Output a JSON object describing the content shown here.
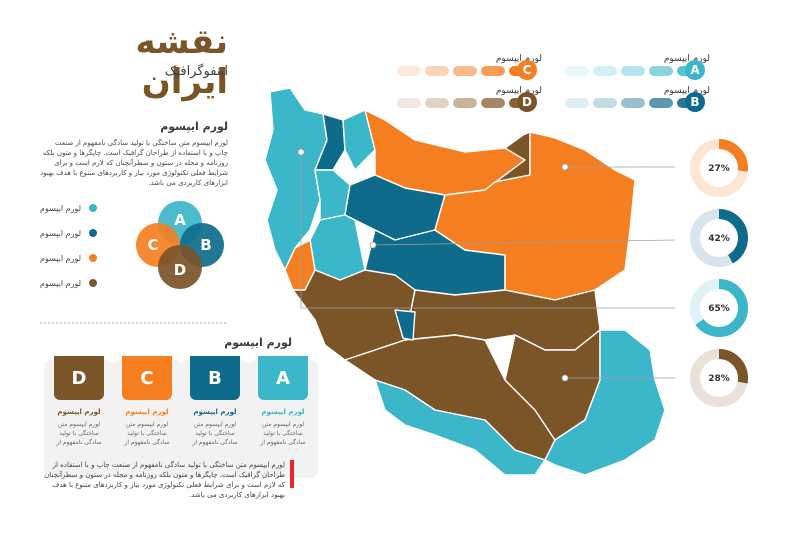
{
  "header": {
    "title": "نقشه ایران",
    "subtitle": "اینفوگرافیک"
  },
  "intro": {
    "heading": "لورم ایپسوم",
    "text": "لورم ایپسوم متن ساختگی با تولید سادگی نامفهوم از صنعت چاپ و با استفاده از طراحان گرافیک است. چاپگرها و متون بلکه روزنامه و مجله در ستون و سطرآنچنان که لازم است و برای شرایط فعلی تکنولوژی مورد نیاز و کاربردهای متنوع با هدف بهبود ابزارهای کاربردی می باشد."
  },
  "venn": {
    "legend": [
      {
        "label": "لورم ایپسوم",
        "color": "#3cb6c9"
      },
      {
        "label": "لورم ایپسوم",
        "color": "#0f6b8c"
      },
      {
        "label": "لورم ایپسوم",
        "color": "#f57f20"
      },
      {
        "label": "لورم ایپسوم",
        "color": "#7b5428"
      }
    ],
    "circles": [
      {
        "letter": "A",
        "color": "#3cb6c9"
      },
      {
        "letter": "B",
        "color": "#0f6b8c"
      },
      {
        "letter": "C",
        "color": "#f57f20"
      },
      {
        "letter": "D",
        "color": "#7b5428"
      }
    ]
  },
  "cards_section": {
    "heading": "لورم ایپسوم",
    "cards": [
      {
        "letter": "D",
        "color": "#7b5428",
        "title": "لورم ایپسوم",
        "text": "لورم ایپسوم متن ساختگی با تولید سادگی نامفهوم از"
      },
      {
        "letter": "C",
        "color": "#f57f20",
        "title": "لورم ایپسوم",
        "text": "لورم ایپسوم متن ساختگی با تولید سادگی نامفهوم از"
      },
      {
        "letter": "B",
        "color": "#0f6b8c",
        "title": "لورم ایپسوم",
        "text": "لورم ایپسوم متن ساختگی با تولید سادگی نامفهوم از"
      },
      {
        "letter": "A",
        "color": "#3cb6c9",
        "title": "لورم ایپسوم",
        "text": "لورم ایپسوم متن ساختگی با تولید سادگی نامفهوم از"
      }
    ]
  },
  "top_legend": [
    {
      "letter": "A",
      "label": "لورم ایپسوم",
      "color": "#3cb6c9",
      "shades": [
        "#eaf7f9",
        "#d3f0f4",
        "#b4e4ec",
        "#8ad4e0",
        "#5cc2d2"
      ]
    },
    {
      "letter": "C",
      "label": "لورم ایپسوم",
      "color": "#f57f20",
      "shades": [
        "#fde9da",
        "#fbd3b6",
        "#f9b98a",
        "#f79c57",
        "#f57f20"
      ]
    },
    {
      "letter": "B",
      "label": "لورم ایپسوم",
      "color": "#0f6b8c",
      "shades": [
        "#e1edf2",
        "#c3dbe4",
        "#99c0cf",
        "#5f97ae",
        "#2c7896"
      ]
    },
    {
      "letter": "D",
      "label": "لورم ایپسوم",
      "color": "#7b5428",
      "shades": [
        "#efe9e2",
        "#e0d4c6",
        "#c8b49c",
        "#a68664",
        "#8a6338"
      ]
    }
  ],
  "rings": [
    {
      "percent": 27,
      "label": "27%",
      "color": "#f57f20",
      "track": "#fde6d4"
    },
    {
      "percent": 42,
      "label": "42%",
      "color": "#0f6b8c",
      "track": "#d7e6ec"
    },
    {
      "percent": 65,
      "label": "65%",
      "color": "#3cb6c9",
      "track": "#dff2f5"
    },
    {
      "percent": 28,
      "label": "28%",
      "color": "#7b5428",
      "track": "#e8e2db"
    }
  ],
  "map_colors": {
    "teal": "#3cb6c9",
    "blue": "#0f6b8c",
    "orange": "#f57f20",
    "brown": "#7b5428"
  },
  "footnote": {
    "text": "لورم ایپسوم متن ساختگی با تولید سادگی نامفهوم از صنعت چاپ و با استفاده از طراحان گرافیک است. چاپگرها و متون بلکه روزنامه و مجله در ستون و سطرآنچنان که لازم است و برای شرایط فعلی تکنولوژی مورد نیاز و کاربردهای متنوع با هدف بهبود ابزارهای کاربردی می باشد.",
    "accent": "#e8262b"
  }
}
